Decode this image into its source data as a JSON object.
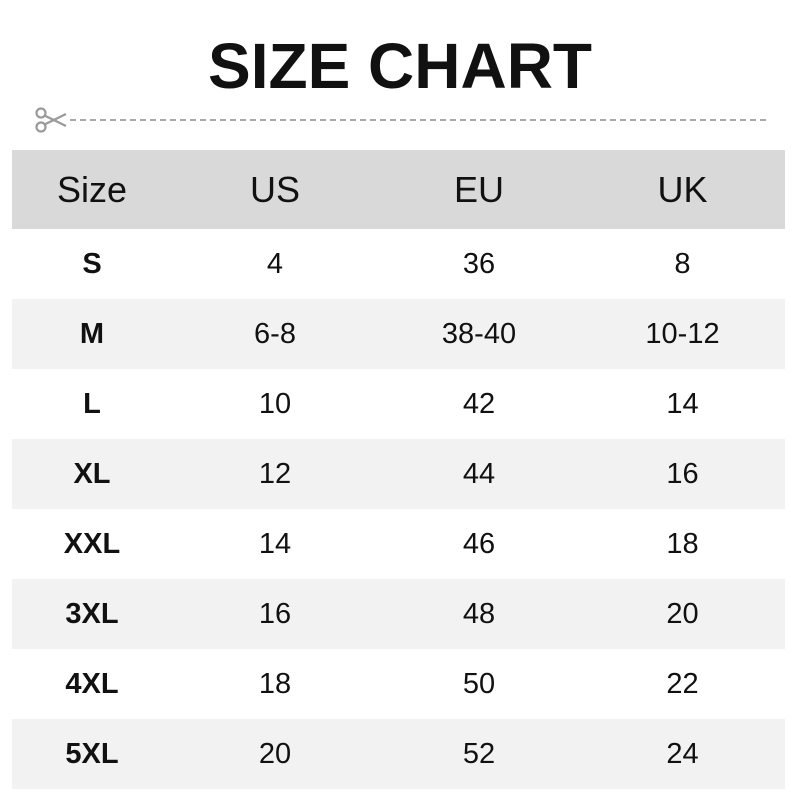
{
  "title": "SIZE CHART",
  "icons": {
    "cut": "scissors-icon"
  },
  "colors": {
    "header_bg": "#d9d9d9",
    "alt_row_bg": "#f2f2f2",
    "dash": "#a8a8a8"
  },
  "table": {
    "headers": [
      "Size",
      "US",
      "EU",
      "UK"
    ],
    "rows": [
      [
        "S",
        "4",
        "36",
        "8"
      ],
      [
        "M",
        "6-8",
        "38-40",
        "10-12"
      ],
      [
        "L",
        "10",
        "42",
        "14"
      ],
      [
        "XL",
        "12",
        "44",
        "16"
      ],
      [
        "XXL",
        "14",
        "46",
        "18"
      ],
      [
        "3XL",
        "16",
        "48",
        "20"
      ],
      [
        "4XL",
        "18",
        "50",
        "22"
      ],
      [
        "5XL",
        "20",
        "52",
        "24"
      ]
    ]
  }
}
